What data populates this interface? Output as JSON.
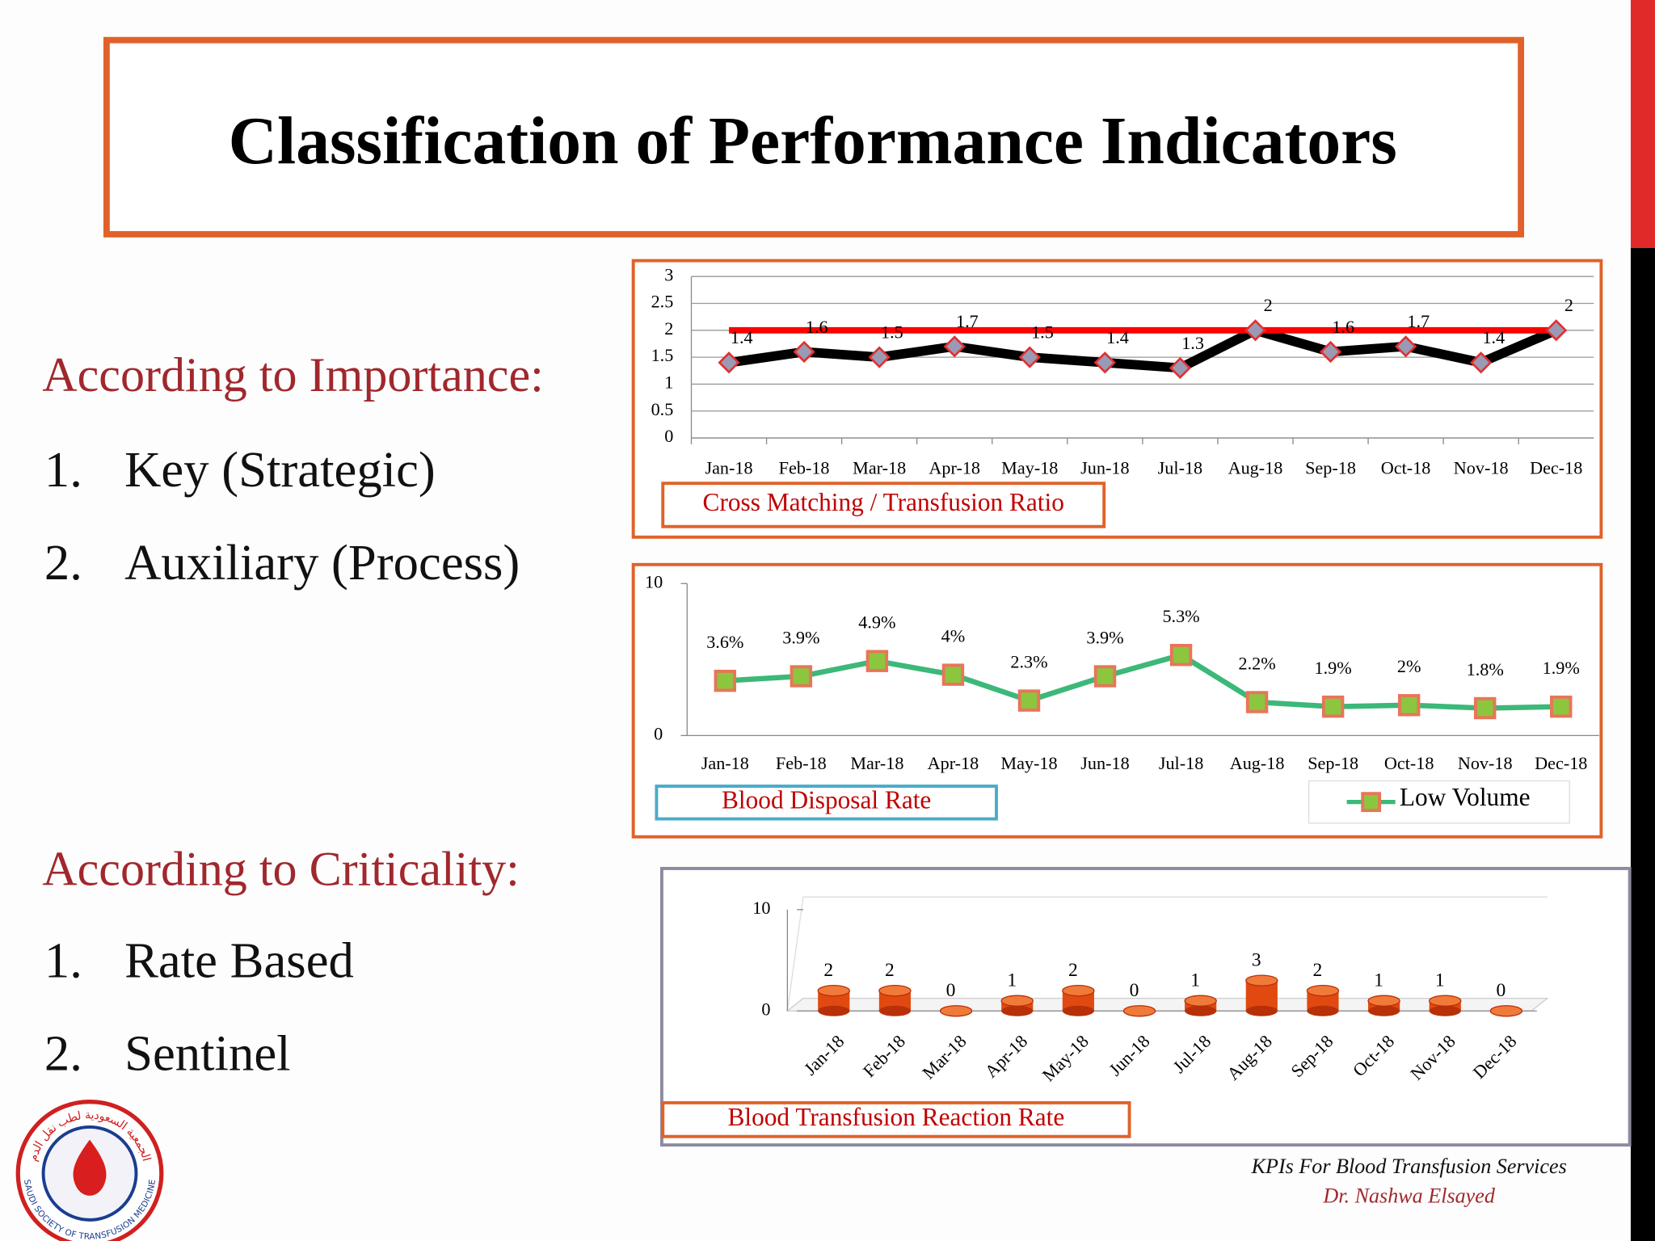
{
  "slide": {
    "title": "Classification of Performance Indicators",
    "sections": [
      {
        "heading": "According to Importance:",
        "items": [
          {
            "number": "1.",
            "text": "Key (Strategic)"
          },
          {
            "number": "2.",
            "text": "Auxiliary (Process)"
          }
        ]
      },
      {
        "heading": "According to Criticality:",
        "items": [
          {
            "number": "1.",
            "text": "Rate Based"
          },
          {
            "number": "2.",
            "text": "Sentinel"
          }
        ]
      }
    ],
    "footer": [
      "KPIs For Blood Transfusion Services",
      "Dr. Nashwa Elsayed"
    ],
    "logo": {
      "arabic": "الجمعية السعودية لطب نقل الدم",
      "english": "SAUDI SOCIETY OF TRANSFUSION MEDICINE"
    }
  },
  "chart_data": [
    {
      "type": "line",
      "title": "Cross Matching / Transfusion Ratio",
      "categories": [
        "Jan-18",
        "Feb-18",
        "Mar-18",
        "Apr-18",
        "May-18",
        "Jun-18",
        "Jul-18",
        "Aug-18",
        "Sep-18",
        "Oct-18",
        "Nov-18",
        "Dec-18"
      ],
      "series": [
        {
          "color": "#000000",
          "marker": "diamond",
          "values": [
            1.4,
            1.6,
            1.5,
            1.7,
            1.5,
            1.4,
            1.3,
            2,
            1.6,
            1.7,
            1.4,
            2
          ]
        },
        {
          "color": "#ff0000",
          "values": [
            2,
            2,
            2,
            2,
            2,
            2,
            2,
            2,
            2,
            2,
            2,
            2
          ]
        }
      ],
      "ylim": [
        0,
        3
      ],
      "yticks": [
        0,
        0.5,
        1,
        1.5,
        2,
        2.5,
        3
      ],
      "grid": true
    },
    {
      "type": "line",
      "title": "Blood Disposal Rate",
      "categories": [
        "Jan-18",
        "Feb-18",
        "Mar-18",
        "Apr-18",
        "May-18",
        "Jun-18",
        "Jul-18",
        "Aug-18",
        "Sep-18",
        "Oct-18",
        "Nov-18",
        "Dec-18"
      ],
      "series": [
        {
          "name": "Low Volume",
          "color": "#3cb878",
          "marker": "square",
          "values": [
            3.6,
            3.9,
            4.9,
            4,
            2.3,
            3.9,
            5.3,
            2.2,
            1.9,
            2,
            1.8,
            1.9
          ],
          "value_labels": [
            "3.6%",
            "3.9%",
            "4.9%",
            "4%",
            "2.3%",
            "3.9%",
            "5.3%",
            "2.2%",
            "1.9%",
            "2%",
            "1.8%",
            "1.9%"
          ]
        }
      ],
      "ylim": [
        0,
        10
      ],
      "yticks": [
        0,
        10
      ],
      "grid": false,
      "legend": "bottom-right"
    },
    {
      "type": "bar",
      "title": "Blood Transfusion Reaction Rate",
      "categories": [
        "Jan-18",
        "Feb-18",
        "Mar-18",
        "Apr-18",
        "May-18",
        "Jun-18",
        "Jul-18",
        "Aug-18",
        "Sep-18",
        "Oct-18",
        "Nov-18",
        "Dec-18"
      ],
      "values": [
        2,
        2,
        0,
        1,
        2,
        0,
        1,
        3,
        2,
        1,
        1,
        0
      ],
      "color": "#e04a10",
      "ylim": [
        0,
        10
      ],
      "yticks": [
        0,
        10
      ],
      "grid": false
    }
  ]
}
